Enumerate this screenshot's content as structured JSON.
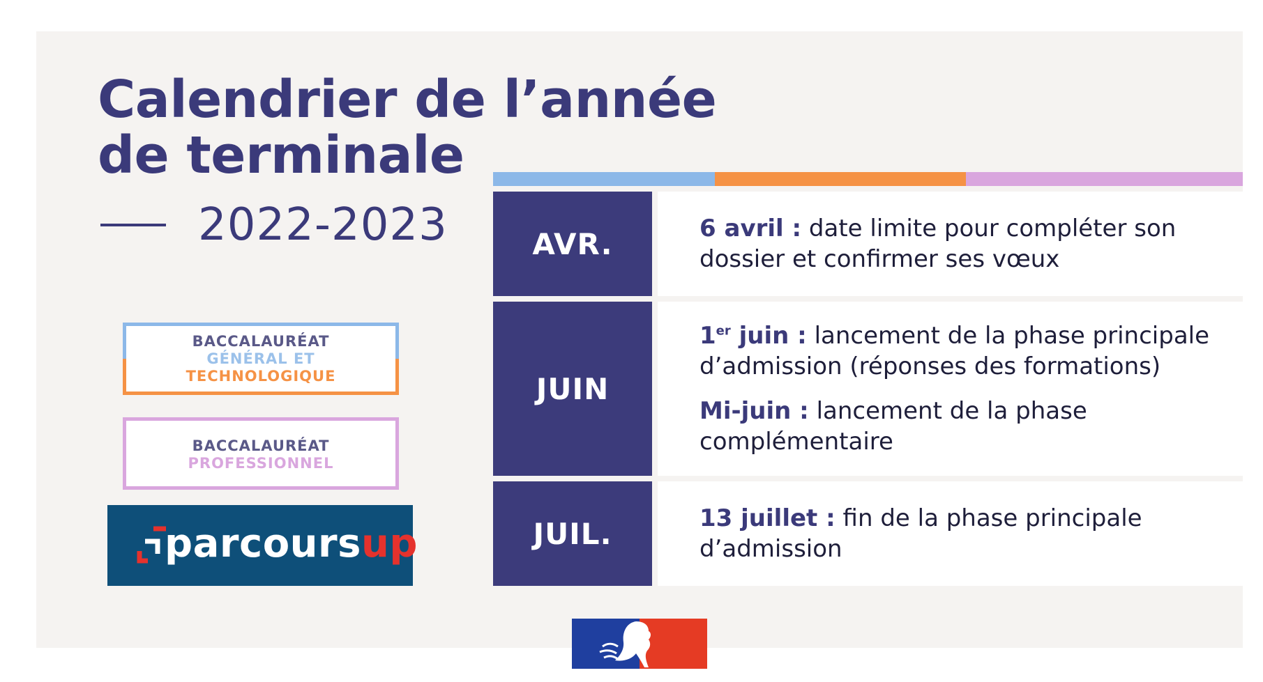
{
  "title": {
    "line1": "Calendrier de l’année",
    "line2": "de terminale"
  },
  "year": "2022-2023",
  "badges": {
    "general": {
      "line1": "BACCALAURÉAT",
      "line2": "GÉNÉRAL ET",
      "line3": "TECHNOLOGIQUE"
    },
    "pro": {
      "line1": "BACCALAURÉAT",
      "line2": "PROFESSIONNEL"
    }
  },
  "logo": {
    "part1": "parcours",
    "part2": "up"
  },
  "colors": {
    "navy": "#3c3b7b",
    "blue": "#8cb8e8",
    "orange": "#f59245",
    "pink": "#d9a6de",
    "parcoursup_bg": "#0e4f79",
    "red": "#e5322d",
    "france_blue": "#1f3f9f",
    "france_red": "#e53b24"
  },
  "calendar": [
    {
      "month": "AVR.",
      "entries": [
        {
          "bold": "6 avril :",
          "text": " date limite pour compléter son dossier et confirmer ses vœux"
        }
      ]
    },
    {
      "month": "JUIN",
      "entries": [
        {
          "bold_num": "1",
          "bold_sup": "er",
          "bold": " juin :",
          "text": " lancement de la phase principale d’admission (réponses des formations)"
        },
        {
          "bold": "Mi-juin :",
          "text": " lancement de la phase complémentaire"
        }
      ]
    },
    {
      "month": "JUIL.",
      "entries": [
        {
          "bold": "13 juillet :",
          "text": " fin de la phase principale d’admission"
        }
      ]
    }
  ]
}
